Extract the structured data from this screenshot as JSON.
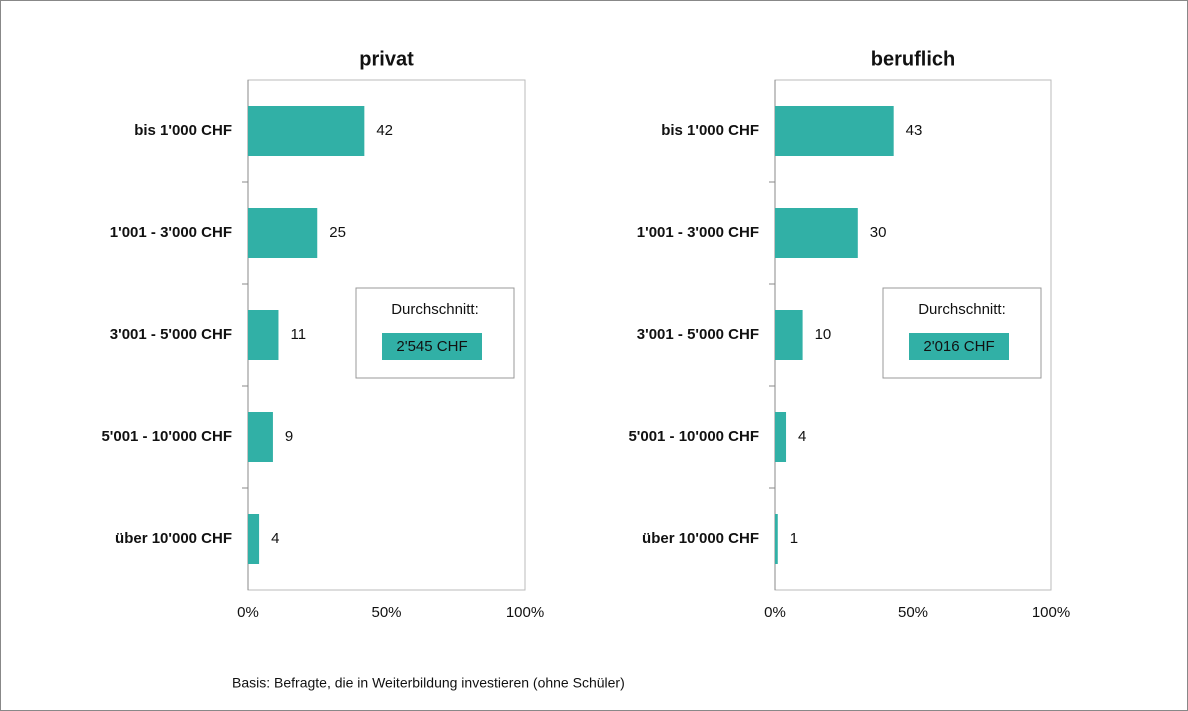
{
  "chart_data": [
    {
      "type": "bar",
      "orientation": "horizontal",
      "title": "privat",
      "categories": [
        "bis 1'000 CHF",
        "1'001 - 3'000 CHF",
        "3'001 - 5'000 CHF",
        "5'001 - 10'000 CHF",
        "über 10'000 CHF"
      ],
      "values": [
        42,
        25,
        11,
        9,
        4
      ],
      "color": "#31b0a6",
      "xlim": [
        0,
        100
      ],
      "xticks": [
        {
          "value": 0,
          "label": "0%"
        },
        {
          "value": 50,
          "label": "50%"
        },
        {
          "value": 100,
          "label": "100%"
        }
      ],
      "annotation": {
        "title": "Durchschnitt:",
        "text": "2'545 CHF"
      }
    },
    {
      "type": "bar",
      "orientation": "horizontal",
      "title": "beruflich",
      "categories": [
        "bis 1'000 CHF",
        "1'001 - 3'000 CHF",
        "3'001 - 5'000 CHF",
        "5'001 - 10'000 CHF",
        "über 10'000 CHF"
      ],
      "values": [
        43,
        30,
        10,
        4,
        1
      ],
      "color": "#31b0a6",
      "xlim": [
        0,
        100
      ],
      "xticks": [
        {
          "value": 0,
          "label": "0%"
        },
        {
          "value": 50,
          "label": "50%"
        },
        {
          "value": 100,
          "label": "100%"
        }
      ],
      "annotation": {
        "title": "Durchschnitt:",
        "text": "2'016 CHF"
      }
    }
  ],
  "footnote": "Basis: Befragte, die in Weiterbildung investieren (ohne Schüler)"
}
